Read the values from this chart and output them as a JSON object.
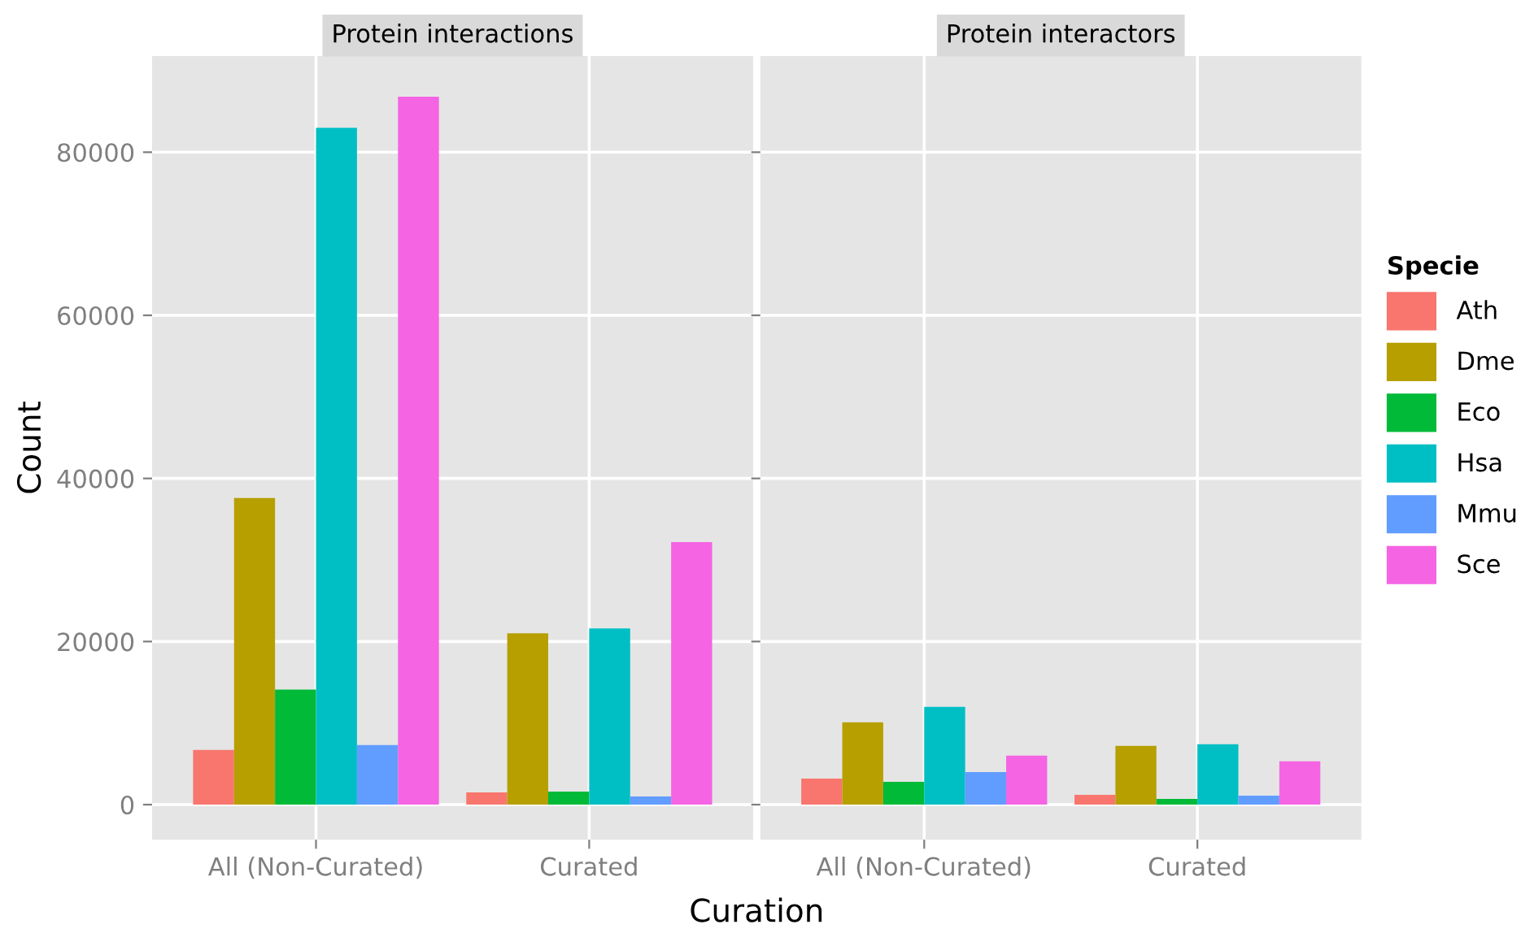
{
  "chart_data": [
    {
      "type": "bar",
      "title": "Protein interactions",
      "xlabel": "Curation",
      "ylabel": "Count",
      "legend_title": "Specie",
      "legend": "right",
      "grid": true,
      "categories": [
        "All (Non-Curated)",
        "Curated"
      ],
      "ylim": [
        -4300,
        91800
      ],
      "yticks": [
        0,
        20000,
        40000,
        60000,
        80000
      ],
      "series": [
        {
          "name": "Ath",
          "color": "#f8766d",
          "values": [
            6700,
            1500
          ]
        },
        {
          "name": "Dme",
          "color": "#b79f00",
          "values": [
            37600,
            21000
          ]
        },
        {
          "name": "Eco",
          "color": "#00ba38",
          "values": [
            14100,
            1600
          ]
        },
        {
          "name": "Hsa",
          "color": "#00bfc4",
          "values": [
            83000,
            21600
          ]
        },
        {
          "name": "Mmu",
          "color": "#619cff",
          "values": [
            7300,
            1000
          ]
        },
        {
          "name": "Sce",
          "color": "#f564e3",
          "values": [
            86800,
            32200
          ]
        }
      ]
    },
    {
      "type": "bar",
      "title": "Protein interactors",
      "grid": true,
      "tick_labels": "x",
      "categories": [
        "All (Non-Curated)",
        "Curated"
      ],
      "ylim": [
        -4300,
        91800
      ],
      "yticks": [
        0,
        20000,
        40000,
        60000,
        80000
      ],
      "series": [
        {
          "color": "#f8766d",
          "values": [
            3200,
            1200
          ]
        },
        {
          "color": "#b79f00",
          "values": [
            10100,
            7200
          ]
        },
        {
          "color": "#00ba38",
          "values": [
            2800,
            700
          ]
        },
        {
          "color": "#00bfc4",
          "values": [
            12000,
            7400
          ]
        },
        {
          "color": "#619cff",
          "values": [
            4000,
            1100
          ]
        },
        {
          "color": "#f564e3",
          "values": [
            6000,
            5300
          ]
        }
      ]
    }
  ]
}
